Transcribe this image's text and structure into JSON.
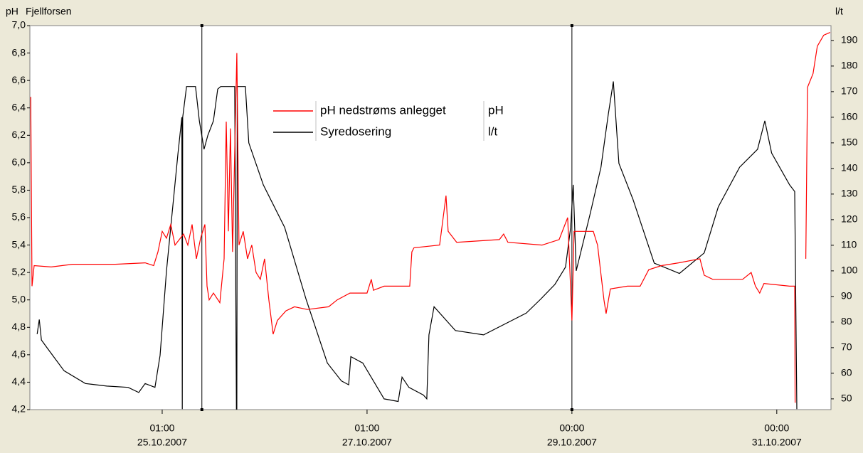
{
  "chart_data": {
    "type": "line",
    "title": "Fjellforsen",
    "y_label": "pH",
    "y2_label": "l/t",
    "xlim": [
      0,
      187.7
    ],
    "xticks": [
      {
        "value": 31,
        "label": "01:00",
        "date": "25.10.2007"
      },
      {
        "value": 79,
        "label": "01:00",
        "date": "27.10.2007"
      },
      {
        "value": 127,
        "label": "00:00",
        "date": "29.10.2007"
      },
      {
        "value": 175,
        "label": "00:00",
        "date": "31.10.2007"
      }
    ],
    "ylim": [
      4.2,
      7.0
    ],
    "yticks": [
      {
        "value": 4.2,
        "label": "4,2"
      },
      {
        "value": 4.4,
        "label": "4,4"
      },
      {
        "value": 4.6,
        "label": "4,6"
      },
      {
        "value": 4.8,
        "label": "4,8"
      },
      {
        "value": 5.0,
        "label": "5,0"
      },
      {
        "value": 5.2,
        "label": "5,2"
      },
      {
        "value": 5.4,
        "label": "5,4"
      },
      {
        "value": 5.6,
        "label": "5,6"
      },
      {
        "value": 5.8,
        "label": "5,8"
      },
      {
        "value": 6.0,
        "label": "6,0"
      },
      {
        "value": 6.2,
        "label": "6,2"
      },
      {
        "value": 6.4,
        "label": "6,4"
      },
      {
        "value": 6.6,
        "label": "6,6"
      },
      {
        "value": 6.8,
        "label": "6,8"
      },
      {
        "value": 7.0,
        "label": "7,0"
      }
    ],
    "y2lim": [
      45.8,
      195.8
    ],
    "y2ticks": [
      50,
      60,
      70,
      80,
      90,
      100,
      110,
      120,
      130,
      140,
      150,
      160,
      170,
      180,
      190
    ],
    "cursors": [
      40.3,
      127
    ],
    "series": [
      {
        "name": "pH nedstrøms anlegget",
        "unit": "pH",
        "color": "#ff0000",
        "x": [
          0.2,
          0.5,
          1,
          5,
          10,
          20,
          27,
          29,
          30,
          31,
          32,
          33,
          34,
          36,
          37,
          38,
          39,
          40,
          41,
          41.5,
          42,
          43,
          44.5,
          45.5,
          46,
          46.5,
          47,
          47.5,
          48.5,
          49,
          50,
          51,
          52,
          53,
          54,
          55,
          56,
          57,
          58,
          60,
          62,
          65,
          70,
          72,
          75,
          79,
          80,
          80.5,
          83,
          89,
          89.5,
          90,
          96,
          97.5,
          98,
          100,
          110,
          111,
          112,
          120,
          124,
          126,
          127,
          127.5,
          129,
          132,
          133,
          134.5,
          135,
          136,
          140,
          143,
          145,
          148,
          152,
          157,
          158,
          160,
          167,
          169,
          170,
          171,
          172,
          178,
          179.2,
          179.3,
          180,
          181.8,
          182.2,
          183.5,
          184.5,
          186,
          187.5
        ],
        "values": [
          6.48,
          5.1,
          5.25,
          5.24,
          5.26,
          5.26,
          5.27,
          5.25,
          5.35,
          5.5,
          5.45,
          5.55,
          5.4,
          5.48,
          5.4,
          5.55,
          5.3,
          5.45,
          5.55,
          5.1,
          5.0,
          5.05,
          4.98,
          5.3,
          6.3,
          5.5,
          6.25,
          5.35,
          6.8,
          5.4,
          5.5,
          5.3,
          5.4,
          5.2,
          5.15,
          5.3,
          5.0,
          4.75,
          4.85,
          4.92,
          4.95,
          4.93,
          4.95,
          5.0,
          5.05,
          5.05,
          5.15,
          5.07,
          5.1,
          5.1,
          5.35,
          5.38,
          5.4,
          5.76,
          5.5,
          5.42,
          5.44,
          5.48,
          5.42,
          5.4,
          5.44,
          5.6,
          4.85,
          5.5,
          5.5,
          5.5,
          5.4,
          5.0,
          4.9,
          5.08,
          5.1,
          5.1,
          5.22,
          5.25,
          5.27,
          5.3,
          5.18,
          5.15,
          5.15,
          5.2,
          5.1,
          5.05,
          5.12,
          5.1,
          5.1,
          4.25,
          null,
          5.3,
          6.55,
          6.65,
          6.85,
          6.93,
          6.95
        ]
      },
      {
        "name": "Syredosering",
        "unit": "l/t",
        "color": "#000000",
        "axis": "y2",
        "x": [
          1.7,
          2.2,
          2.7,
          4,
          8,
          13,
          18,
          23,
          25.5,
          27,
          29.3,
          30.5,
          32,
          34.7,
          35.6,
          35.7,
          35.8,
          36.7,
          38.8,
          39.7,
          40.8,
          41.7,
          43,
          44,
          44.7,
          48,
          48.4,
          48.5,
          48.6,
          50.5,
          51.3,
          54.7,
          59.7,
          64.7,
          69.7,
          73,
          74.7,
          75.2,
          78,
          83,
          86.3,
          87.2,
          88.8,
          92.2,
          93,
          93.5,
          94.7,
          99.7,
          106.3,
          113,
          116.3,
          119.7,
          123,
          125.5,
          126.7,
          127.3,
          128,
          131.3,
          133.8,
          135.5,
          136.7,
          138,
          141.3,
          146.3,
          152.2,
          158,
          161.3,
          166.3,
          170.5,
          172.2,
          173.8,
          178,
          179.2,
          179.7
        ],
        "values": [
          75.3,
          81,
          73,
          70,
          61,
          56,
          55,
          54.5,
          52.5,
          56,
          54.5,
          67,
          100,
          146,
          160,
          46,
          160,
          172,
          172,
          158.6,
          147.5,
          153,
          158.6,
          171,
          172,
          172,
          46,
          46,
          172,
          172,
          150,
          133.6,
          117,
          89,
          64,
          57,
          55.5,
          66.5,
          64,
          50,
          49,
          58.5,
          54.5,
          51.5,
          50,
          75,
          86,
          76.7,
          75,
          80.7,
          83.5,
          89,
          94.7,
          101.5,
          117,
          133.6,
          100,
          122.5,
          140.5,
          161,
          174,
          142,
          128,
          103,
          99,
          107,
          125,
          140.5,
          147.5,
          158.6,
          146,
          133.6,
          131,
          46
        ]
      }
    ]
  }
}
